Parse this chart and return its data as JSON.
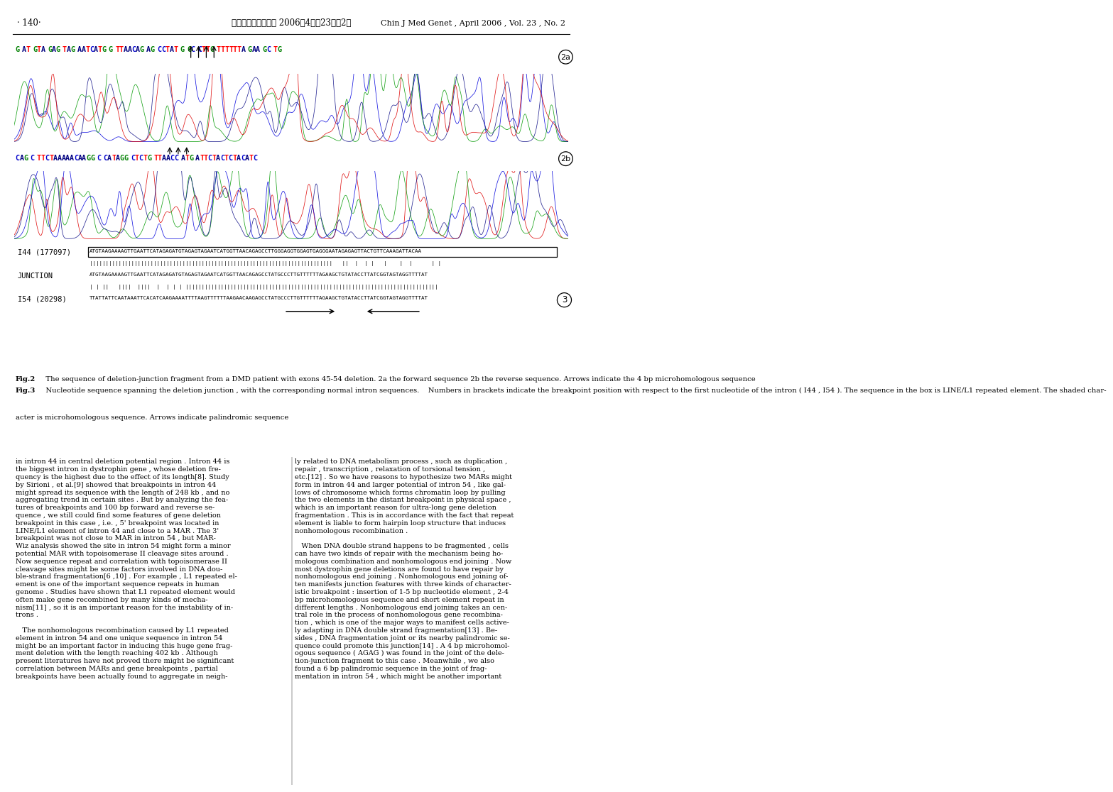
{
  "header_left": "· 140·",
  "header_center": "中华医学遗传学杂志 2006年4月第23卷第2期",
  "header_right": "Chin J Med Genet , April 2006 , Vol. 23 , No. 2",
  "seq_top": "G AT GTA GAG TAG AATCATG G TTAACAG AG CCTAT G GC CTTG TTTTTTA GAA GC TG",
  "seq_mid": "CAG C TTCTAAAAACAAGG C CATAGG CTCTG TTAACC ATG ATTCTACTCTACATC",
  "i44_label": "I44 (177097)",
  "i44_seq": "ATGTAAGAAAAGTTGAATTCATAGAGATGTAGAGTAGAATCATGGTTAACAGAGCCTTGGGAGGTGGAGTGAGGGAATAGAGAGTTACTGTTCAAAGATTACAA",
  "i44_match": "||||||||||||||||||||||||||||||||||||||||||||||||||||||||||||||||||||||||||||   ||  |  | |   |    |  |      | |",
  "junction_label": "JUNCTION",
  "junction_seq": "ATGTAAGAAAAGTTGAATTCATAGAGATGTAGAGTAGAATCATGGTTAACAGAGCCTATGCCCTTGTTTTTTAGAAGCTGTATACCTTATCGGTAGTAGGTTTTAT",
  "i54_match": "| | ||   ||||  ||||  |  | | | |||||||||||||||||||||||||||||||||||||||||||||||||||||||||||||||||||||||||||||||",
  "i54_label": "I54 (20298)",
  "i54_seq": "TTATTATTCAATAAATTCACATCAAGAAAATTTTAAGTTTTTTAAGAACAAGAGCCTATGCCCTTGTTTTTTAGAAGCTGTATACCTTATCGGTAGTAGGTTTTAT",
  "fig2_bold": "Fig.2",
  "fig2_text": "   The sequence of deletion-junction fragment from a DMD patient with exons 45-54 deletion. 2a the forward sequence 2b the reverse sequence. Arrows indicate the 4 bp microhomologous sequence",
  "fig3_bold": "Fig.3",
  "fig3_text": "   Nucleotide sequence spanning the deletion junction , with the corresponding normal intron sequences.    Numbers in brackets indicate the breakpoint position with respect to the first nucleotide of the intron ( I44 , I54 ). The sequence in the box is LINE/L1 repeated element. The shaded char-",
  "fig_last_line": "acter is microhomologous sequence. Arrows indicate palindromic sequence",
  "body_left_col": [
    "in intron 44 in central deletion potential region . Intron 44 is",
    "the biggest intron in dystrophin gene , whose deletion fre-",
    "quency is the highest due to the effect of its length[8]. Study",
    "by Sirioni , et al.[9] showed that breakpoints in intron 44",
    "might spread its sequence with the length of 248 kb , and no",
    "aggregating trend in certain sites . But by analyzing the fea-",
    "tures of breakpoints and 100 bp forward and reverse se-",
    "quence , we still could find some features of gene deletion",
    "breakpoint in this case , i.e. , 5' breakpoint was located in",
    "LINE/L1 element of intron 44 and close to a MAR . The 3'",
    "breakpoint was not close to MAR in intron 54 , but MAR-",
    "Wiz analysis showed the site in intron 54 might form a minor",
    "potential MAR with topoisomerase II cleavage sites around .",
    "Now sequence repeat and correlation with topoisomerase II",
    "cleavage sites might be some factors involved in DNA dou-",
    "ble-strand fragmentation[6 ,10] . For example , L1 repeated el-",
    "ement is one of the important sequence repeats in human",
    "genome . Studies have shown that L1 repeated element would",
    "often make gene recombined by many kinds of mecha-",
    "nism[11] , so it is an important reason for the instability of in-",
    "trons .",
    "",
    "   The nonhomologous recombination caused by L1 repeated",
    "element in intron 54 and one unique sequence in intron 54",
    "might be an important factor in inducing this huge gene frag-",
    "ment deletion with the length reaching 402 kb . Although",
    "present literatures have not proved there might be significant",
    "correlation between MARs and gene breakpoints , partial",
    "breakpoints have been actually found to aggregate in neigh-"
  ],
  "body_right_col": [
    "ly related to DNA metabolism process , such as duplication ,",
    "repair , transcription , relaxation of torsional tension ,",
    "etc.[12] . So we have reasons to hypothesize two MARs might",
    "form in intron 44 and larger potential of intron 54 , like gal-",
    "lows of chromosome which forms chromatin loop by pulling",
    "the two elements in the distant breakpoint in physical space ,",
    "which is an important reason for ultra-long gene deletion",
    "fragmentation . This is in accordance with the fact that repeat",
    "element is liable to form hairpin loop structure that induces",
    "nonhomologous recombination .",
    "",
    "   When DNA double strand happens to be fragmented , cells",
    "can have two kinds of repair with the mechanism being ho-",
    "mologous combination and nonhomologous end joining . Now",
    "most dystrophin gene deletions are found to have repair by",
    "nonhomologous end joining . Nonhomologous end joining of-",
    "ten manifests junction features with three kinds of character-",
    "istic breakpoint : insertion of 1-5 bp nucleotide element , 2-4",
    "bp microhomologous sequence and short element repeat in",
    "different lengths . Nonhomologous end joining takes an cen-",
    "tral role in the process of nonhomologous gene recombina-",
    "tion , which is one of the major ways to manifest cells active-",
    "ly adapting in DNA double strand fragmentation[13] . Be-",
    "sides , DNA fragmentation joint or its nearby palindromic se-",
    "quence could promote this junction[14] . A 4 bp microhomol-",
    "ogous sequence ( AGAG ) was found in the joint of the dele-",
    "tion-junction fragment to this case . Meanwhile , we also",
    "found a 6 bp palindromic sequence in the joint of frag-",
    "mentation in intron 54 , which might be another important"
  ]
}
